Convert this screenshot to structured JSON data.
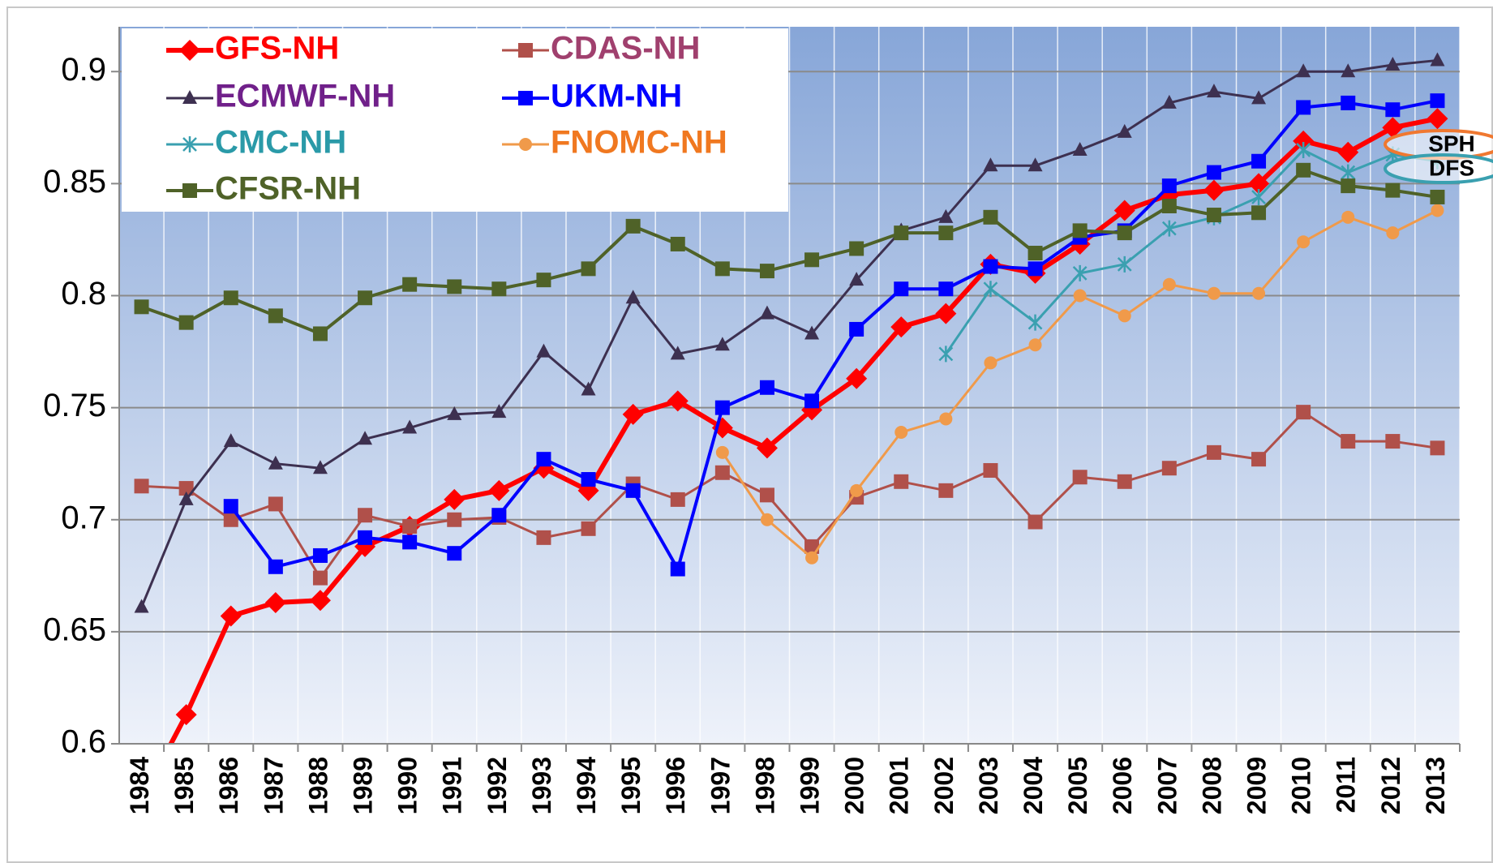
{
  "chart_data": {
    "type": "line",
    "categories": [
      "1984",
      "1985",
      "1986",
      "1987",
      "1988",
      "1989",
      "1990",
      "1991",
      "1992",
      "1993",
      "1994",
      "1995",
      "1996",
      "1997",
      "1998",
      "1999",
      "2000",
      "2001",
      "2002",
      "2003",
      "2004",
      "2005",
      "2006",
      "2007",
      "2008",
      "2009",
      "2010",
      "2011",
      "2012",
      "2013"
    ],
    "ylim": [
      0.6,
      0.92
    ],
    "yticks": [
      0.6,
      0.65,
      0.7,
      0.75,
      0.8,
      0.85,
      0.9
    ],
    "grid": true,
    "legend": "top-left",
    "series": [
      {
        "name": "GFS-NH",
        "color": "#ff0000",
        "legend_text_color": "#ff0000",
        "marker": "diamond",
        "line_width": 6,
        "values": [
          0.575,
          0.613,
          0.657,
          0.663,
          0.664,
          0.688,
          0.697,
          0.709,
          0.713,
          0.723,
          0.713,
          0.747,
          0.753,
          0.741,
          0.732,
          0.749,
          0.763,
          0.786,
          0.792,
          0.814,
          0.81,
          0.823,
          0.838,
          0.845,
          0.847,
          0.85,
          0.869,
          0.864,
          0.875,
          0.879
        ]
      },
      {
        "name": "CDAS-NH",
        "color": "#b0504a",
        "legend_text_color": "#a0406e",
        "marker": "square",
        "line_width": 3,
        "values": [
          0.715,
          0.714,
          0.7,
          0.707,
          0.674,
          0.702,
          0.697,
          0.7,
          0.701,
          0.692,
          0.696,
          0.716,
          0.709,
          0.721,
          0.711,
          0.688,
          0.71,
          0.717,
          0.713,
          0.722,
          0.699,
          0.719,
          0.717,
          0.723,
          0.73,
          0.727,
          0.748,
          0.735,
          0.735,
          0.732
        ]
      },
      {
        "name": "ECMWF-NH",
        "color": "#3d3050",
        "legend_text_color": "#70208a",
        "marker": "triangle",
        "line_width": 3,
        "values": [
          0.661,
          0.709,
          0.735,
          0.725,
          0.723,
          0.736,
          0.741,
          0.747,
          0.748,
          0.775,
          0.758,
          0.799,
          0.774,
          0.778,
          0.792,
          0.783,
          0.807,
          0.829,
          0.835,
          0.858,
          0.858,
          0.865,
          0.873,
          0.886,
          0.891,
          0.888,
          0.9,
          0.9,
          0.903,
          0.905
        ]
      },
      {
        "name": "UKM-NH",
        "color": "#0000ff",
        "legend_text_color": "#0000ff",
        "marker": "square",
        "line_width": 4,
        "values": [
          null,
          null,
          0.706,
          0.679,
          0.684,
          0.692,
          0.69,
          0.685,
          0.702,
          0.727,
          0.718,
          0.713,
          0.678,
          0.75,
          0.759,
          0.753,
          0.785,
          0.803,
          0.803,
          0.813,
          0.812,
          0.826,
          0.829,
          0.849,
          0.855,
          0.86,
          0.884,
          0.886,
          0.883,
          0.887
        ]
      },
      {
        "name": "CMC-NH",
        "color": "#3aa0b0",
        "legend_text_color": "#2a9aa8",
        "marker": "star",
        "line_width": 3,
        "values": [
          null,
          null,
          null,
          null,
          null,
          null,
          null,
          null,
          null,
          null,
          null,
          null,
          null,
          null,
          null,
          null,
          null,
          null,
          0.774,
          0.803,
          0.788,
          0.81,
          0.814,
          0.83,
          0.835,
          0.844,
          0.865,
          0.855,
          0.863,
          0.86
        ]
      },
      {
        "name": "FNOMC-NH",
        "color": "#f09a4a",
        "legend_text_color": "#f07820",
        "marker": "circle",
        "line_width": 3,
        "values": [
          null,
          null,
          null,
          null,
          null,
          null,
          null,
          null,
          null,
          null,
          null,
          null,
          null,
          0.73,
          0.7,
          0.683,
          0.713,
          0.739,
          0.745,
          0.77,
          0.778,
          0.8,
          0.791,
          0.805,
          0.801,
          0.801,
          0.824,
          0.835,
          0.828,
          0.838
        ]
      },
      {
        "name": "CFSR-NH",
        "color": "#4f6228",
        "legend_text_color": "#4f6228",
        "marker": "square",
        "line_width": 4,
        "values": [
          0.795,
          0.788,
          0.799,
          0.791,
          0.783,
          0.799,
          0.805,
          0.804,
          0.803,
          0.807,
          0.812,
          0.831,
          0.823,
          0.812,
          0.811,
          0.816,
          0.821,
          0.828,
          0.828,
          0.835,
          0.819,
          0.829,
          0.828,
          0.84,
          0.836,
          0.837,
          0.856,
          0.849,
          0.847,
          0.844
        ]
      }
    ],
    "annotations": [
      {
        "text": "SPH",
        "color": "#f07830"
      },
      {
        "text": "DFS",
        "color": "#3aa0b0"
      }
    ]
  }
}
